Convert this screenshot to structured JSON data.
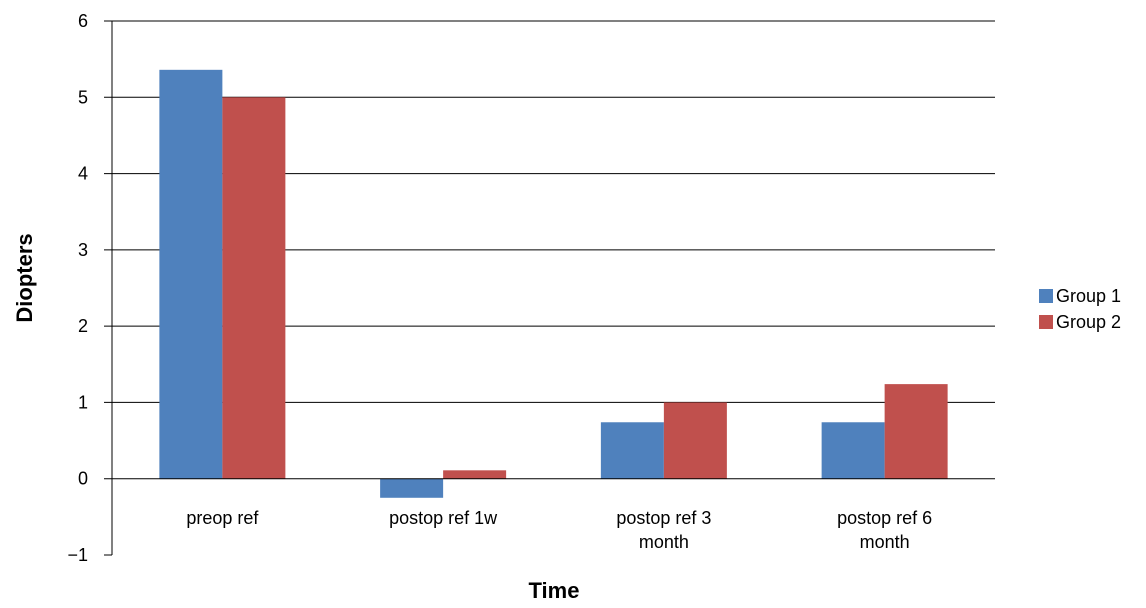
{
  "chart_data": {
    "type": "bar",
    "xlabel": "Time",
    "ylabel": "Diopters",
    "ylim": [
      -1,
      6
    ],
    "yticks": [
      "6",
      "5",
      "4",
      "3",
      "2",
      "1",
      "0",
      "−1"
    ],
    "ytick_values": [
      6,
      5,
      4,
      3,
      2,
      1,
      0,
      -1
    ],
    "grid": "horizontal",
    "legend_position": "right",
    "categories": [
      [
        "preop ref"
      ],
      [
        "postop ref 1w"
      ],
      [
        "postop ref 3",
        "month"
      ],
      [
        "postop ref 6",
        "month"
      ]
    ],
    "series": [
      {
        "name": "Group 1",
        "color": "#4f81bd",
        "values": [
          5.36,
          -0.25,
          0.74,
          0.74
        ]
      },
      {
        "name": "Group 2",
        "color": "#c0504d",
        "values": [
          5.0,
          0.11,
          1.0,
          1.24
        ]
      }
    ]
  }
}
